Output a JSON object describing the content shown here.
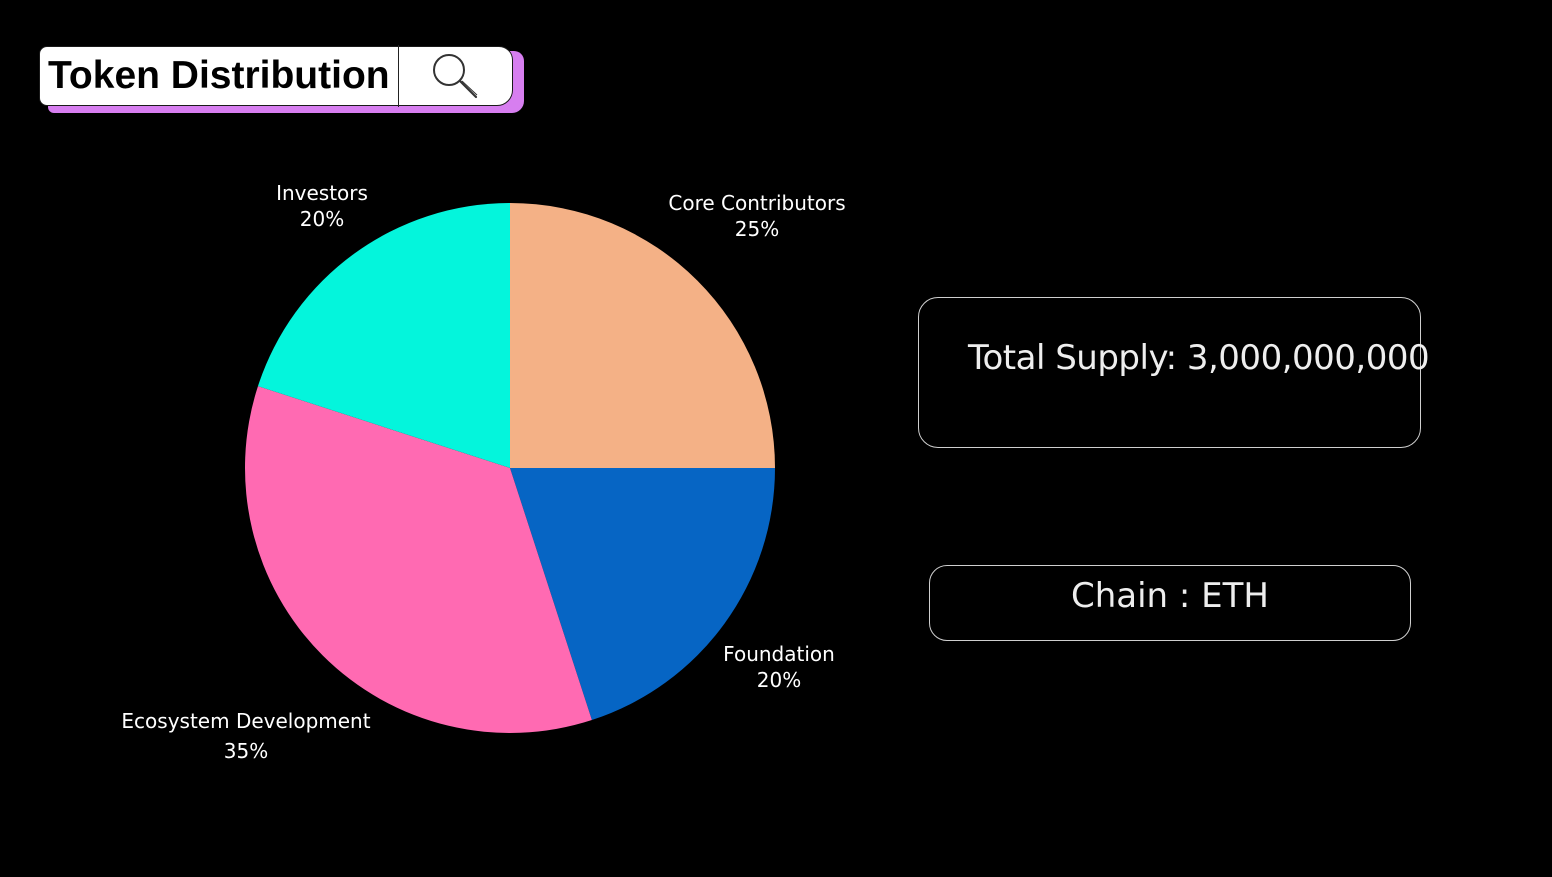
{
  "header": {
    "title": "Token Distribution",
    "search_icon": "search-icon",
    "shadow_color": "#d77ef0"
  },
  "chart_data": {
    "type": "pie",
    "title": "",
    "categories": [
      "Core Contributors",
      "Foundation",
      "Ecosystem Development",
      "Investors"
    ],
    "values": [
      25,
      20,
      35,
      20
    ],
    "value_labels": [
      "25%",
      "20%",
      "35%",
      "20%"
    ],
    "colors": [
      "#f4b186",
      "#0665c4",
      "#ff6ab2",
      "#04f5dc"
    ],
    "start": "12 o'clock",
    "direction": "clockwise",
    "labels_position": "outside"
  },
  "info": {
    "supply_text": "Total Supply: 3,000,000,000",
    "chain_text": "Chain : ETH"
  }
}
